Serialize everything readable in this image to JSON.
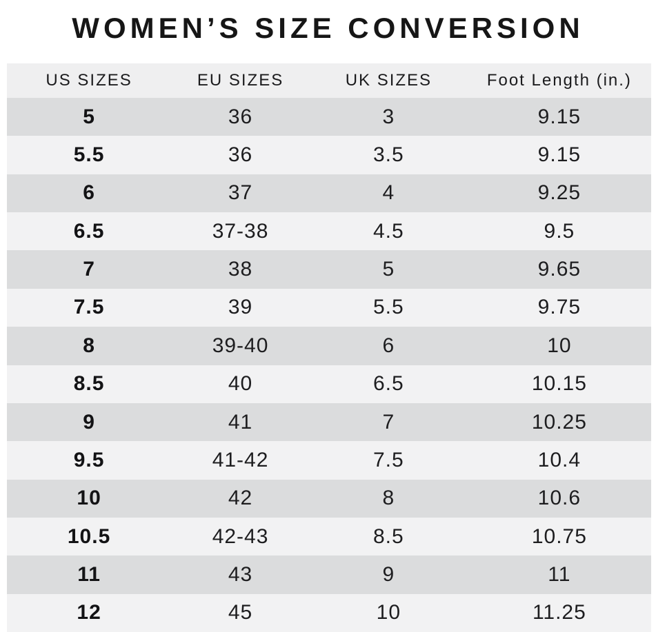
{
  "chart_data": {
    "type": "table",
    "title": "WOMEN’S SIZE CONVERSION",
    "columns": [
      "US SIZES",
      "EU SIZES",
      "UK SIZES",
      "Foot Length (in.)"
    ],
    "rows": [
      [
        "5",
        "36",
        "3",
        "9.15"
      ],
      [
        "5.5",
        "36",
        "3.5",
        "9.15"
      ],
      [
        "6",
        "37",
        "4",
        "9.25"
      ],
      [
        "6.5",
        "37-38",
        "4.5",
        "9.5"
      ],
      [
        "7",
        "38",
        "5",
        "9.65"
      ],
      [
        "7.5",
        "39",
        "5.5",
        "9.75"
      ],
      [
        "8",
        "39-40",
        "6",
        "10"
      ],
      [
        "8.5",
        "40",
        "6.5",
        "10.15"
      ],
      [
        "9",
        "41",
        "7",
        "10.25"
      ],
      [
        "9.5",
        "41-42",
        "7.5",
        "10.4"
      ],
      [
        "10",
        "42",
        "8",
        "10.6"
      ],
      [
        "10.5",
        "42-43",
        "8.5",
        "10.75"
      ],
      [
        "11",
        "43",
        "9",
        "11"
      ],
      [
        "12",
        "45",
        "10",
        "11.25"
      ]
    ]
  },
  "colors": {
    "background": "#ffffff",
    "header_bg": "#efeff0",
    "row_dark": "#dbdcdd",
    "row_light": "#f2f2f3",
    "text": "#1d1d1f",
    "title_text": "#161616"
  }
}
